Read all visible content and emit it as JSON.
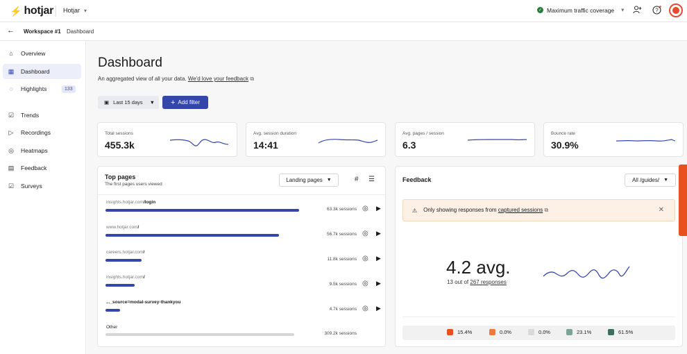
{
  "topbar": {
    "logo_mark": "⚡",
    "logo_text": "hotjar",
    "site_name": "Hotjar",
    "traffic_label": "Maximum traffic coverage",
    "icons": [
      "add-user-icon",
      "help-icon",
      "avatar"
    ]
  },
  "breadcrumb": {
    "workspace": "Workspace #1",
    "page": "Dashboard"
  },
  "sidebar": {
    "items": [
      {
        "label": "Overview",
        "icon": "home-icon",
        "glyph": "⌂"
      },
      {
        "label": "Dashboard",
        "icon": "dashboard-icon",
        "glyph": "▦"
      },
      {
        "label": "Highlights",
        "icon": "bulb-icon",
        "glyph": "◌",
        "badge": "133"
      },
      {
        "label": "Trends",
        "icon": "trends-icon",
        "glyph": "☑"
      },
      {
        "label": "Recordings",
        "icon": "recordings-icon",
        "glyph": "▷"
      },
      {
        "label": "Heatmaps",
        "icon": "heatmaps-icon",
        "glyph": "◎"
      },
      {
        "label": "Feedback",
        "icon": "feedback-icon",
        "glyph": "▤"
      },
      {
        "label": "Surveys",
        "icon": "surveys-icon",
        "glyph": "☑"
      }
    ]
  },
  "main": {
    "title": "Dashboard",
    "subtitle": "An aggregated view of all your data.",
    "feedback_link": "We'd love your feedback",
    "range_label": "Last 15 days",
    "add_filter_label": "Add filter"
  },
  "metrics": [
    {
      "label": "Total sessions",
      "value": "455.3k"
    },
    {
      "label": "Avg. session duration",
      "value": "14:41"
    },
    {
      "label": "Avg. pages / session",
      "value": "6.3"
    },
    {
      "label": "Bounce rate",
      "value": "30.9%"
    }
  ],
  "top_pages": {
    "title": "Top pages",
    "subtitle": "The first pages users viewed",
    "dropdown": "Landing pages",
    "rows": [
      {
        "domain": "insights.hotjar.com",
        "path": "/login",
        "sessions": "63.3k sessions",
        "fill": 1.0
      },
      {
        "domain": "www.hotjar.com",
        "path": "/",
        "sessions": "56.7k sessions",
        "fill": 0.895
      },
      {
        "domain": "careers.hotjar.com",
        "path": "/",
        "sessions": "11.8k sessions",
        "fill": 0.186
      },
      {
        "domain": "insights.hotjar.com",
        "path": "/",
        "sessions": "9.5k sessions",
        "fill": 0.15
      },
      {
        "domain": "",
        "path": "..._source=modal-survey-thankyou",
        "sessions": "4.7k sessions",
        "fill": 0.074
      },
      {
        "domain": "Other",
        "path": "",
        "sessions": "309.2k sessions",
        "fill": 1.0
      }
    ]
  },
  "feedback": {
    "title": "Feedback",
    "dropdown": "All /guides/",
    "notice_text": "Only showing responses from",
    "notice_link": "captured sessions",
    "avg_label": "4.2 avg.",
    "count_prefix": "13 out of",
    "responses_link": "267 responses",
    "ratings": [
      {
        "value": "15.4%",
        "color": "#e8501e"
      },
      {
        "value": "0.0%",
        "color": "#f07a3a"
      },
      {
        "value": "0.0%",
        "color": "#d9d9d9"
      },
      {
        "value": "23.1%",
        "color": "#7fa497"
      },
      {
        "value": "61.5%",
        "color": "#3f6e5c"
      }
    ]
  }
}
